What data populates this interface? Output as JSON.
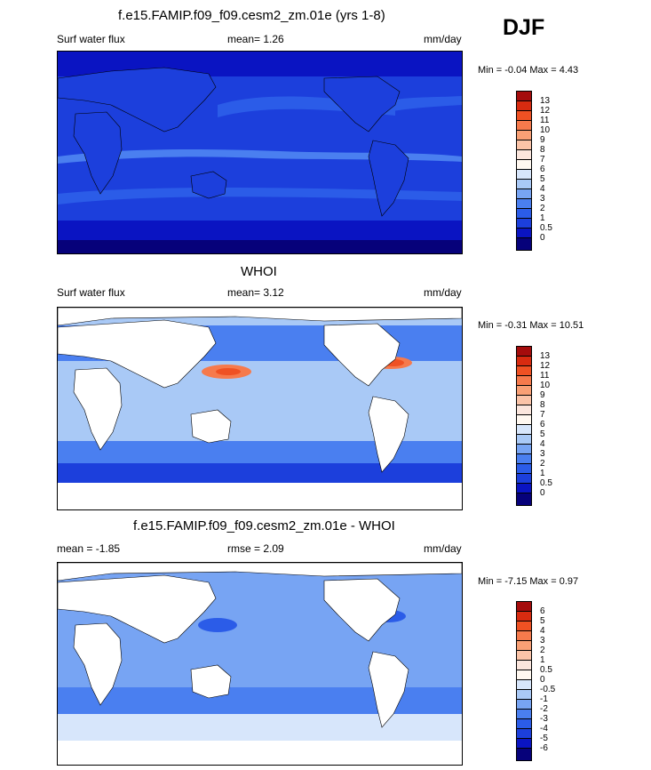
{
  "season": "DJF",
  "palette": [
    "#06017a",
    "#0a14c2",
    "#1c3fdc",
    "#2b5ce8",
    "#4a7ff0",
    "#77a4f3",
    "#a9c9f6",
    "#d7e6fb",
    "#fbe6dd",
    "#fbc4a8",
    "#f9a075",
    "#f67a4c",
    "#ef5123",
    "#d82b10",
    "#a50c0c"
  ],
  "panels": [
    {
      "title": "f.e15.FAMIP.f09_f09.cesm2_zm.01e (yrs 1-8)",
      "left_label": "Surf water flux",
      "center_label": "mean=  1.26",
      "units": "mm/day",
      "minmax": "Min =  -0.04 Max =  4.43",
      "colorbar": [
        "13",
        "12",
        "11",
        "10",
        "9",
        "8",
        "7",
        "6",
        "5",
        "4",
        "3",
        "2",
        "1",
        "0.5",
        "0"
      ]
    },
    {
      "title": "WHOI",
      "left_label": "Surf water flux",
      "center_label": "mean=  3.12",
      "units": "mm/day",
      "minmax": "Min =  -0.31 Max =  10.51",
      "colorbar": [
        "13",
        "12",
        "11",
        "10",
        "9",
        "8",
        "7",
        "6",
        "5",
        "4",
        "3",
        "2",
        "1",
        "0.5",
        "0"
      ]
    },
    {
      "title": "f.e15.FAMIP.f09_f09.cesm2_zm.01e - WHOI",
      "left_label": "mean =  -1.85",
      "center_label": "rmse =  2.09",
      "units": "mm/day",
      "minmax": "Min =  -7.15 Max =  0.97",
      "colorbar": [
        "6",
        "5",
        "4",
        "3",
        "2",
        "1",
        "0.5",
        "0",
        "-0.5",
        "-1",
        "-2",
        "-3",
        "-4",
        "-5",
        "-6"
      ]
    }
  ],
  "chart_data": [
    {
      "type": "heatmap",
      "title": "f.e15.FAMIP.f09_f09.cesm2_zm.01e (yrs 1-8)",
      "variable": "Surf water flux",
      "units": "mm/day",
      "mean": 1.26,
      "min": -0.04,
      "max": 4.43,
      "levels": [
        0,
        0.5,
        1,
        2,
        3,
        4,
        5,
        6,
        7,
        8,
        9,
        10,
        11,
        12,
        13
      ]
    },
    {
      "type": "heatmap",
      "title": "WHOI",
      "variable": "Surf water flux",
      "units": "mm/day",
      "mean": 3.12,
      "min": -0.31,
      "max": 10.51,
      "levels": [
        0,
        0.5,
        1,
        2,
        3,
        4,
        5,
        6,
        7,
        8,
        9,
        10,
        11,
        12,
        13
      ]
    },
    {
      "type": "heatmap",
      "title": "f.e15.FAMIP.f09_f09.cesm2_zm.01e - WHOI",
      "units": "mm/day",
      "mean": -1.85,
      "rmse": 2.09,
      "min": -7.15,
      "max": 0.97,
      "levels": [
        -6,
        -5,
        -4,
        -3,
        -2,
        -1,
        -0.5,
        0,
        0.5,
        1,
        2,
        3,
        4,
        5,
        6
      ]
    }
  ]
}
